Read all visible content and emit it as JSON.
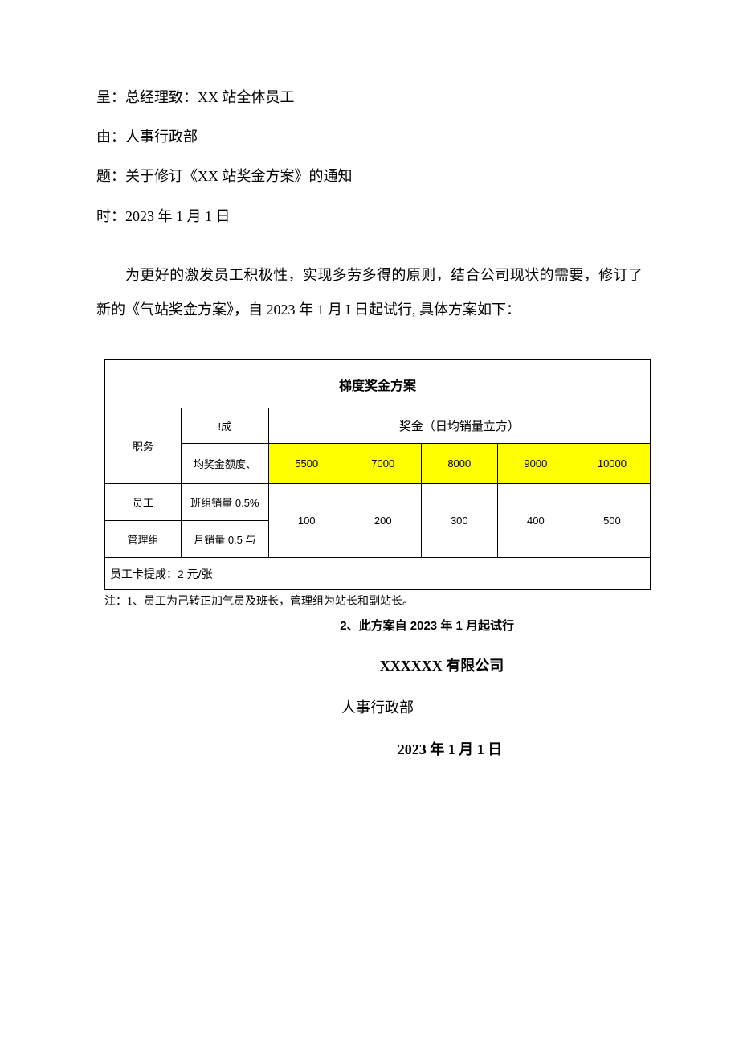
{
  "header": {
    "to": "呈：总经理致：XX 站全体员工",
    "from": "由：人事行政部",
    "subject": "题：关于修订《XX 站奖金方案》的通知",
    "date": "时：2023 年 1 月 1 日"
  },
  "body": {
    "paragraph": "为更好的激发员工积极性，实现多劳多得的原则，结合公司现状的需要，修订了新的《气站奖金方案》，自 2023 年 1 月 I 日起试行, 具体方案如下："
  },
  "table": {
    "title": "梯度奖金方案",
    "col_position": "职务",
    "col_commission_top": "!成",
    "col_commission_bottom": "均奖金额度、",
    "bonus_header": "奖金（日均销量立方）",
    "tiers": [
      "5500",
      "7000",
      "8000",
      "9000",
      "10000"
    ],
    "rows": [
      {
        "role": "员工",
        "commission": "班组销量 0.5%"
      },
      {
        "role": "管理组",
        "commission": "月销量 0.5 与"
      }
    ],
    "bonus_values": [
      "100",
      "200",
      "300",
      "400",
      "500"
    ],
    "footer_text": "员工卡提成：2 元/张",
    "tier_bg_color": "#ffff00",
    "border_color": "#000000"
  },
  "notes": {
    "note1": "注：1、员工为己转正加气员及班长，管理组为站长和副站长。",
    "note2": "2、此方案自 2023 年 1 月起试行"
  },
  "signature": {
    "company": "XXXXXX 有限公司",
    "dept": "人事行政部",
    "date": "2023 年 1 月 1 日"
  }
}
